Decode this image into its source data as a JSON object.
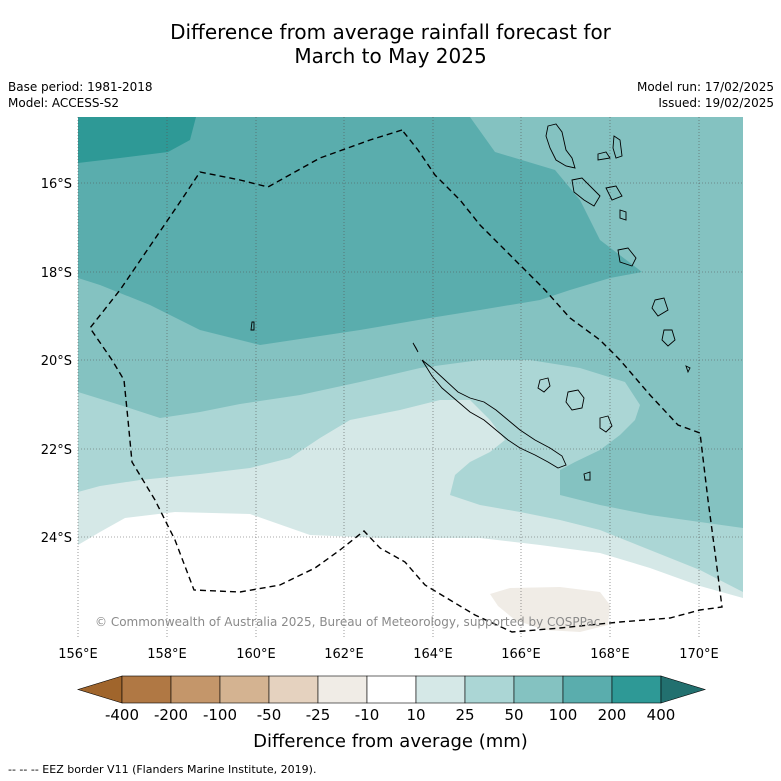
{
  "title_line1": "Difference from average rainfall forecast for",
  "title_line2": "March to May 2025",
  "base_period": "Base period: 1981-2018",
  "model": "Model: ACCESS-S2",
  "model_run": "Model run: 17/02/2025",
  "issued": "Issued: 19/02/2025",
  "copyright": "© Commonwealth of Australia 2025, Bureau of Meteorology, supported by COSPPac",
  "lat_labels": [
    "16°S",
    "18°S",
    "20°S",
    "22°S",
    "24°S"
  ],
  "lon_labels": [
    "156°E",
    "158°E",
    "160°E",
    "162°E",
    "164°E",
    "166°E",
    "168°E",
    "170°E"
  ],
  "colorbar": {
    "title": "Difference from average (mm)",
    "labels": [
      "-400",
      "-200",
      "-100",
      "-50",
      "-25",
      "-10",
      "10",
      "25",
      "50",
      "100",
      "200",
      "400"
    ],
    "colors": [
      "#a0652c",
      "#b07844",
      "#c4966a",
      "#d4b391",
      "#e5d2bf",
      "#f0ece6",
      "#ffffff",
      "#d5e8e7",
      "#abd6d5",
      "#84c2c1",
      "#5aadad",
      "#2e9996",
      "#22706f"
    ]
  },
  "footer": "--  --  -- EEZ border V11 (Flanders Marine Institute, 2019)."
}
